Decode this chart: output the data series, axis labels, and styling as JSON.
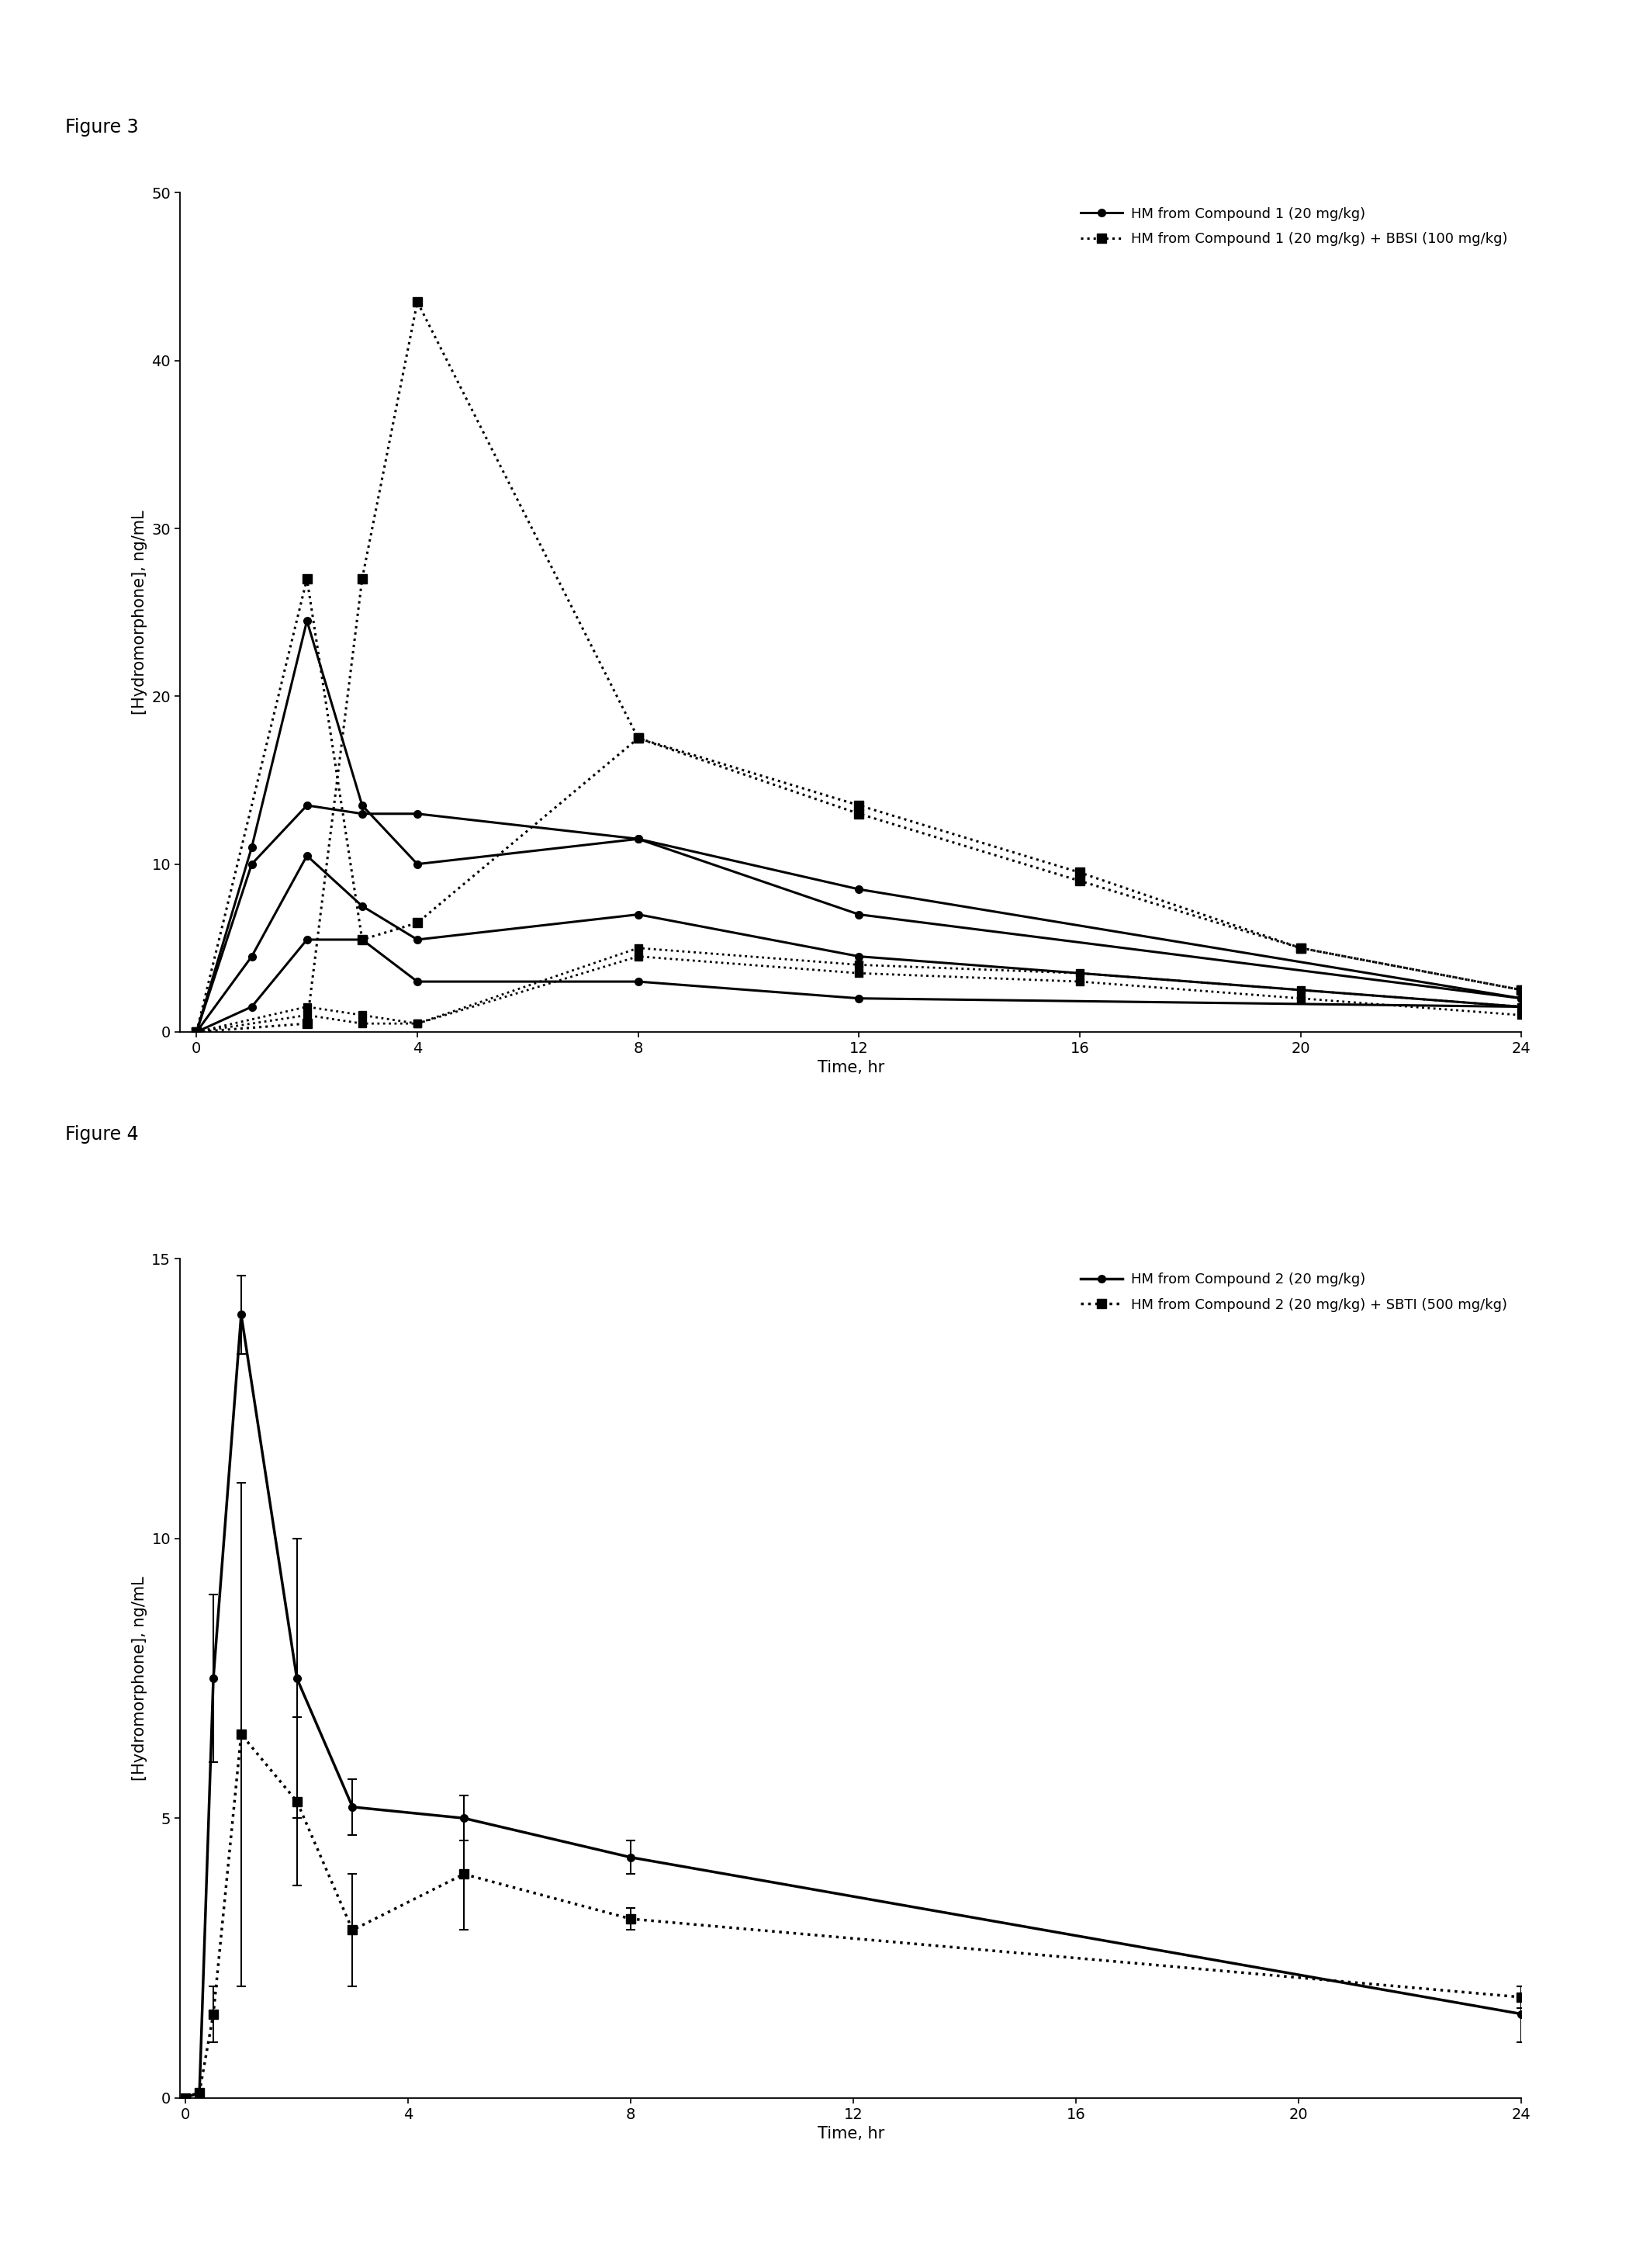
{
  "fig3_title": "Figure 3",
  "fig4_title": "Figure 4",
  "ylabel": "[Hydromorphone], ng/mL",
  "xlabel": "Time, hr",
  "fig3": {
    "ylim": [
      0,
      50
    ],
    "yticks": [
      0,
      10,
      20,
      30,
      40,
      50
    ],
    "xticks": [
      0,
      4,
      8,
      12,
      16,
      20,
      24
    ],
    "xlim": [
      -0.3,
      24
    ],
    "solid_lines": [
      {
        "x": [
          0,
          1,
          2,
          3,
          4,
          8,
          12,
          24
        ],
        "y": [
          0,
          11,
          24.5,
          13.5,
          10.0,
          11.5,
          7.0,
          2.0
        ],
        "lw": 2.2,
        "marker": "o",
        "ms": 7
      },
      {
        "x": [
          0,
          1,
          2,
          3,
          4,
          8,
          12,
          24
        ],
        "y": [
          0,
          10,
          13.5,
          13.0,
          13.0,
          11.5,
          8.5,
          2.0
        ],
        "lw": 2.2,
        "marker": "o",
        "ms": 7
      },
      {
        "x": [
          0,
          1,
          2,
          3,
          4,
          8,
          12,
          24
        ],
        "y": [
          0,
          4.5,
          10.5,
          7.5,
          5.5,
          7.0,
          4.5,
          1.5
        ],
        "lw": 2.2,
        "marker": "o",
        "ms": 7
      },
      {
        "x": [
          0,
          1,
          2,
          3,
          4,
          8,
          12,
          24
        ],
        "y": [
          0,
          1.5,
          5.5,
          5.5,
          3.0,
          3.0,
          2.0,
          1.5
        ],
        "lw": 2.2,
        "marker": "o",
        "ms": 7
      }
    ],
    "dotted_lines": [
      {
        "x": [
          0,
          2,
          3,
          4,
          8,
          12,
          16,
          20,
          24
        ],
        "y": [
          0,
          27.0,
          5.5,
          6.5,
          17.5,
          13.0,
          9.0,
          5.0,
          2.5
        ],
        "lw": 2.2,
        "marker": "s",
        "ms": 8
      },
      {
        "x": [
          0,
          2,
          3,
          4,
          8,
          12,
          16,
          20,
          24
        ],
        "y": [
          0,
          1.5,
          1.0,
          0.5,
          5.0,
          4.0,
          3.5,
          2.5,
          1.5
        ],
        "lw": 2.0,
        "marker": "s",
        "ms": 7
      },
      {
        "x": [
          0,
          2,
          3,
          4,
          8,
          12,
          16,
          20,
          24
        ],
        "y": [
          0,
          1.0,
          0.5,
          0.5,
          4.5,
          3.5,
          3.0,
          2.0,
          1.0
        ],
        "lw": 2.0,
        "marker": "s",
        "ms": 7
      },
      {
        "x": [
          0,
          2,
          3,
          4,
          8,
          12,
          16,
          20,
          24
        ],
        "y": [
          0,
          0.5,
          27.0,
          43.5,
          17.5,
          13.5,
          9.5,
          5.0,
          2.5
        ],
        "lw": 2.2,
        "marker": "s",
        "ms": 9
      }
    ],
    "legend": [
      {
        "label": "HM from Compound 1 (20 mg/kg)",
        "solid": true
      },
      {
        "label": "HM from Compound 1 (20 mg/kg) + BBSI (100 mg/kg)",
        "solid": false
      }
    ]
  },
  "fig4": {
    "ylim": [
      0,
      15
    ],
    "yticks": [
      0,
      5,
      10,
      15
    ],
    "xticks": [
      0,
      4,
      8,
      12,
      16,
      20,
      24
    ],
    "xlim": [
      -0.1,
      24
    ],
    "solid_line": {
      "x": [
        0,
        0.25,
        0.5,
        1,
        2,
        3,
        5,
        8,
        24
      ],
      "y": [
        0,
        0.1,
        7.5,
        14.0,
        7.5,
        5.2,
        5.0,
        4.3,
        1.5
      ],
      "yerr": [
        0,
        0.05,
        1.5,
        0.7,
        2.5,
        0.5,
        0.4,
        0.3,
        0.5
      ],
      "lw": 2.5,
      "marker": "o",
      "ms": 7
    },
    "dotted_line": {
      "x": [
        0,
        0.25,
        0.5,
        1,
        2,
        3,
        5,
        8,
        24
      ],
      "y": [
        0,
        0.1,
        1.5,
        6.5,
        5.3,
        3.0,
        4.0,
        3.2,
        1.8
      ],
      "yerr": [
        0,
        0.05,
        0.5,
        4.5,
        1.5,
        1.0,
        1.0,
        0.2,
        0.2
      ],
      "lw": 2.5,
      "marker": "s",
      "ms": 8
    },
    "legend": [
      {
        "label": "HM from Compound 2 (20 mg/kg)",
        "solid": true
      },
      {
        "label": "HM from Compound 2 (20 mg/kg) + SBTI (500 mg/kg)",
        "solid": false
      }
    ]
  },
  "color": "#000000",
  "background": "#ffffff",
  "fontsize_label": 15,
  "fontsize_tick": 14,
  "fontsize_legend": 13,
  "fontsize_figtitle": 17
}
